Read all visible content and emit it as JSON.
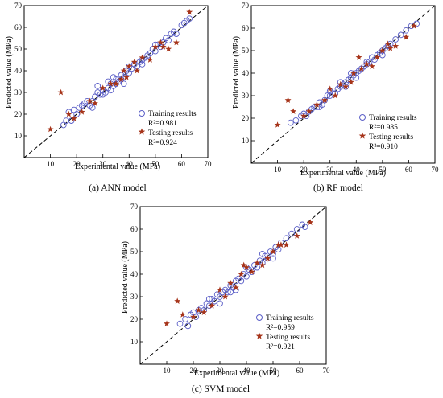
{
  "figure": {
    "panels": [
      {
        "id": "ann",
        "caption": "(a) ANN model",
        "legend": {
          "training_label": "Training results",
          "training_r2": "R²=0.981",
          "testing_label": "Testing results",
          "testing_r2": "R²=0.924"
        }
      },
      {
        "id": "rf",
        "caption": "(b) RF model",
        "legend": {
          "training_label": "Training results",
          "training_r2": "R²=0.985",
          "testing_label": "Testing results",
          "testing_r2": "R²=0.910"
        }
      },
      {
        "id": "svm",
        "caption": "(c) SVM model",
        "legend": {
          "training_label": "Training results",
          "training_r2": "R²=0.959",
          "testing_label": "Testing results",
          "testing_r2": "R²=0.921"
        }
      }
    ]
  },
  "colors": {
    "training": "#5b5fc7",
    "testing": "#a6341a",
    "diagonal": "#000000"
  },
  "chart_data": [
    {
      "type": "scatter",
      "title": "",
      "xlabel": "Experimental value (MPa)",
      "ylabel": "Predicted value (MPa)",
      "xlim": [
        0,
        70
      ],
      "ylim": [
        0,
        70
      ],
      "xticks": [
        10,
        20,
        30,
        40,
        50,
        60,
        70
      ],
      "yticks": [
        10,
        20,
        30,
        40,
        50,
        60,
        70
      ],
      "grid": false,
      "legend_position": "bottom-right",
      "reference_line": "y=x",
      "series": [
        {
          "name": "Training results",
          "marker": "open-circle",
          "points": [
            [
              15,
              15
            ],
            [
              16,
              17
            ],
            [
              17,
              21
            ],
            [
              18,
              17
            ],
            [
              19,
              22
            ],
            [
              20,
              20
            ],
            [
              21,
              23
            ],
            [
              22,
              24
            ],
            [
              23,
              25
            ],
            [
              24,
              26
            ],
            [
              25,
              24
            ],
            [
              26,
              26
            ],
            [
              27,
              28
            ],
            [
              28,
              30
            ],
            [
              28,
              33
            ],
            [
              29,
              29
            ],
            [
              30,
              31
            ],
            [
              31,
              30
            ],
            [
              32,
              32
            ],
            [
              33,
              34
            ],
            [
              33,
              31
            ],
            [
              34,
              33
            ],
            [
              35,
              36
            ],
            [
              35,
              34
            ],
            [
              36,
              35
            ],
            [
              37,
              38
            ],
            [
              37,
              36
            ],
            [
              38,
              37
            ],
            [
              39,
              40
            ],
            [
              40,
              39
            ],
            [
              40,
              42
            ],
            [
              41,
              41
            ],
            [
              42,
              43
            ],
            [
              43,
              42
            ],
            [
              44,
              44
            ],
            [
              45,
              45
            ],
            [
              46,
              46
            ],
            [
              47,
              47
            ],
            [
              48,
              48
            ],
            [
              49,
              50
            ],
            [
              50,
              49
            ],
            [
              51,
              52
            ],
            [
              52,
              51
            ],
            [
              53,
              53
            ],
            [
              54,
              55
            ],
            [
              55,
              54
            ],
            [
              56,
              57
            ],
            [
              57,
              58
            ],
            [
              58,
              57
            ],
            [
              60,
              61
            ],
            [
              61,
              62
            ],
            [
              62,
              63
            ],
            [
              63,
              64
            ],
            [
              38,
              34
            ],
            [
              45,
              43
            ],
            [
              50,
              52
            ],
            [
              32,
              35
            ],
            [
              26,
              23
            ],
            [
              30,
              29
            ],
            [
              34,
              37
            ]
          ]
        },
        {
          "name": "Testing results",
          "marker": "star",
          "points": [
            [
              10,
              13
            ],
            [
              14,
              30
            ],
            [
              17,
              20
            ],
            [
              19,
              18
            ],
            [
              22,
              21
            ],
            [
              25,
              26
            ],
            [
              27,
              25
            ],
            [
              30,
              32
            ],
            [
              33,
              34
            ],
            [
              35,
              34
            ],
            [
              37,
              36
            ],
            [
              38,
              40
            ],
            [
              39,
              37
            ],
            [
              40,
              42
            ],
            [
              42,
              44
            ],
            [
              43,
              40
            ],
            [
              45,
              46
            ],
            [
              48,
              45
            ],
            [
              50,
              51
            ],
            [
              52,
              53
            ],
            [
              53,
              51
            ],
            [
              55,
              50
            ],
            [
              58,
              53
            ],
            [
              63,
              67
            ]
          ]
        }
      ]
    },
    {
      "type": "scatter",
      "title": "",
      "xlabel": "Experimental value (MPa)",
      "ylabel": "Predicted value (MPa)",
      "xlim": [
        0,
        70
      ],
      "ylim": [
        0,
        70
      ],
      "xticks": [
        10,
        20,
        30,
        40,
        50,
        60,
        70
      ],
      "yticks": [
        10,
        20,
        30,
        40,
        50,
        60,
        70
      ],
      "grid": false,
      "legend_position": "bottom-right",
      "reference_line": "y=x",
      "series": [
        {
          "name": "Training results",
          "marker": "open-circle",
          "points": [
            [
              15,
              18
            ],
            [
              17,
              19
            ],
            [
              19,
              21
            ],
            [
              20,
              22
            ],
            [
              21,
              21
            ],
            [
              22,
              23
            ],
            [
              23,
              24
            ],
            [
              24,
              25
            ],
            [
              25,
              25
            ],
            [
              26,
              27
            ],
            [
              27,
              26
            ],
            [
              28,
              28
            ],
            [
              29,
              30
            ],
            [
              30,
              30
            ],
            [
              31,
              31
            ],
            [
              32,
              31
            ],
            [
              33,
              33
            ],
            [
              34,
              34
            ],
            [
              35,
              35
            ],
            [
              36,
              36
            ],
            [
              37,
              37
            ],
            [
              38,
              38
            ],
            [
              39,
              39
            ],
            [
              40,
              40
            ],
            [
              41,
              41
            ],
            [
              42,
              42
            ],
            [
              43,
              43
            ],
            [
              44,
              44
            ],
            [
              45,
              45
            ],
            [
              46,
              47
            ],
            [
              47,
              46
            ],
            [
              48,
              48
            ],
            [
              49,
              49
            ],
            [
              50,
              50
            ],
            [
              51,
              51
            ],
            [
              52,
              52
            ],
            [
              53,
              53
            ],
            [
              55,
              55
            ],
            [
              57,
              57
            ],
            [
              59,
              59
            ],
            [
              61,
              61
            ],
            [
              63,
              62
            ],
            [
              36,
              34
            ],
            [
              40,
              38
            ],
            [
              30,
              32
            ],
            [
              26,
              25
            ],
            [
              44,
              45
            ],
            [
              50,
              48
            ],
            [
              34,
              36
            ],
            [
              38,
              40
            ]
          ]
        },
        {
          "name": "Testing results",
          "marker": "star",
          "points": [
            [
              10,
              17
            ],
            [
              14,
              28
            ],
            [
              16,
              23
            ],
            [
              20,
              21
            ],
            [
              22,
              23
            ],
            [
              25,
              26
            ],
            [
              28,
              28
            ],
            [
              30,
              33
            ],
            [
              32,
              30
            ],
            [
              34,
              35
            ],
            [
              36,
              34
            ],
            [
              38,
              36
            ],
            [
              39,
              40
            ],
            [
              41,
              47
            ],
            [
              42,
              42
            ],
            [
              44,
              44
            ],
            [
              46,
              43
            ],
            [
              48,
              47
            ],
            [
              50,
              50
            ],
            [
              52,
              53
            ],
            [
              53,
              51
            ],
            [
              55,
              52
            ],
            [
              59,
              56
            ],
            [
              62,
              61
            ]
          ]
        }
      ]
    },
    {
      "type": "scatter",
      "title": "",
      "xlabel": "Experimental value (MPa)",
      "ylabel": "Predicted value (MPa)",
      "xlim": [
        0,
        70
      ],
      "ylim": [
        0,
        70
      ],
      "xticks": [
        10,
        20,
        30,
        40,
        50,
        60,
        70
      ],
      "yticks": [
        10,
        20,
        30,
        40,
        50,
        60,
        70
      ],
      "grid": false,
      "legend_position": "bottom-right",
      "reference_line": "y=x",
      "series": [
        {
          "name": "Training results",
          "marker": "open-circle",
          "points": [
            [
              15,
              18
            ],
            [
              17,
              20
            ],
            [
              18,
              17
            ],
            [
              19,
              22
            ],
            [
              20,
              23
            ],
            [
              21,
              21
            ],
            [
              22,
              24
            ],
            [
              23,
              25
            ],
            [
              24,
              24
            ],
            [
              25,
              27
            ],
            [
              26,
              26
            ],
            [
              27,
              29
            ],
            [
              28,
              28
            ],
            [
              29,
              31
            ],
            [
              30,
              30
            ],
            [
              31,
              32
            ],
            [
              32,
              33
            ],
            [
              33,
              32
            ],
            [
              34,
              35
            ],
            [
              35,
              34
            ],
            [
              36,
              37
            ],
            [
              37,
              38
            ],
            [
              38,
              37
            ],
            [
              39,
              40
            ],
            [
              40,
              39
            ],
            [
              41,
              42
            ],
            [
              42,
              41
            ],
            [
              43,
              44
            ],
            [
              44,
              43
            ],
            [
              45,
              46
            ],
            [
              46,
              45
            ],
            [
              47,
              48
            ],
            [
              48,
              47
            ],
            [
              49,
              50
            ],
            [
              50,
              49
            ],
            [
              51,
              52
            ],
            [
              52,
              51
            ],
            [
              53,
              54
            ],
            [
              55,
              56
            ],
            [
              57,
              58
            ],
            [
              59,
              60
            ],
            [
              61,
              62
            ],
            [
              62,
              61
            ],
            [
              36,
              33
            ],
            [
              40,
              43
            ],
            [
              30,
              27
            ],
            [
              46,
              49
            ],
            [
              50,
              47
            ],
            [
              26,
              29
            ],
            [
              34,
              32
            ]
          ]
        },
        {
          "name": "Testing results",
          "marker": "star",
          "points": [
            [
              10,
              18
            ],
            [
              14,
              28
            ],
            [
              16,
              22
            ],
            [
              20,
              21
            ],
            [
              22,
              24
            ],
            [
              24,
              23
            ],
            [
              27,
              26
            ],
            [
              30,
              33
            ],
            [
              32,
              30
            ],
            [
              34,
              36
            ],
            [
              36,
              34
            ],
            [
              38,
              40
            ],
            [
              39,
              44
            ],
            [
              40,
              43
            ],
            [
              42,
              41
            ],
            [
              44,
              45
            ],
            [
              46,
              44
            ],
            [
              48,
              47
            ],
            [
              50,
              50
            ],
            [
              52,
              53
            ],
            [
              53,
              53
            ],
            [
              55,
              53
            ],
            [
              59,
              57
            ],
            [
              64,
              63
            ]
          ]
        }
      ]
    }
  ]
}
